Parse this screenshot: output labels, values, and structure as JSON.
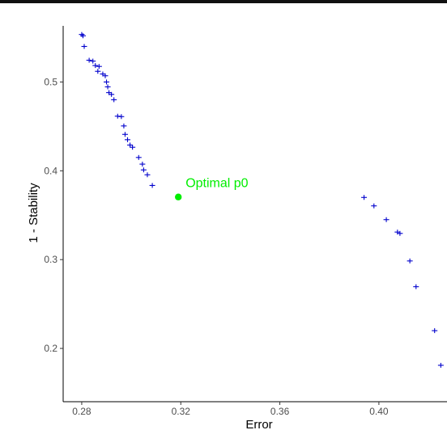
{
  "chart_data": {
    "type": "scatter",
    "title": "",
    "xlabel": "Error",
    "ylabel": "1 - Stability",
    "xlim": [
      0.2725,
      0.4275
    ],
    "ylim": [
      0.14,
      0.565
    ],
    "x_ticks": [
      {
        "value": 0.28,
        "label": "0.28"
      },
      {
        "value": 0.32,
        "label": "0.32"
      },
      {
        "value": 0.36,
        "label": "0.36"
      },
      {
        "value": 0.4,
        "label": "0.40"
      }
    ],
    "y_ticks": [
      {
        "value": 0.2,
        "label": "0.2"
      },
      {
        "value": 0.3,
        "label": "0.3"
      },
      {
        "value": 0.4,
        "label": "0.4"
      },
      {
        "value": 0.5,
        "label": "0.5"
      }
    ],
    "grid": false,
    "legend": "none",
    "colors": {
      "points": "#0000cc",
      "optimal": "#00ee00",
      "axis": "#000000"
    },
    "series": [
      {
        "marker": "plus",
        "points": [
          [
            0.28,
            0.5535
          ],
          [
            0.2805,
            0.552
          ],
          [
            0.281,
            0.54
          ],
          [
            0.283,
            0.5245
          ],
          [
            0.2845,
            0.5235
          ],
          [
            0.2855,
            0.5185
          ],
          [
            0.2865,
            0.512
          ],
          [
            0.287,
            0.5175
          ],
          [
            0.2885,
            0.509
          ],
          [
            0.2895,
            0.507
          ],
          [
            0.29,
            0.5
          ],
          [
            0.2905,
            0.4945
          ],
          [
            0.291,
            0.488
          ],
          [
            0.292,
            0.486
          ],
          [
            0.293,
            0.48
          ],
          [
            0.2945,
            0.4615
          ],
          [
            0.296,
            0.461
          ],
          [
            0.297,
            0.4505
          ],
          [
            0.2975,
            0.441
          ],
          [
            0.2985,
            0.435
          ],
          [
            0.2995,
            0.429
          ],
          [
            0.3005,
            0.4265
          ],
          [
            0.303,
            0.415
          ],
          [
            0.3045,
            0.4075
          ],
          [
            0.305,
            0.401
          ],
          [
            0.3065,
            0.3955
          ],
          [
            0.3085,
            0.3835
          ],
          [
            0.394,
            0.37
          ],
          [
            0.398,
            0.3605
          ],
          [
            0.403,
            0.345
          ],
          [
            0.4075,
            0.331
          ],
          [
            0.4085,
            0.3295
          ],
          [
            0.4125,
            0.2985
          ],
          [
            0.415,
            0.2695
          ],
          [
            0.4225,
            0.22
          ],
          [
            0.425,
            0.181
          ]
        ]
      }
    ],
    "annotations": [
      {
        "label": "Optimal p0",
        "x": 0.319,
        "y": 0.3705
      }
    ]
  }
}
